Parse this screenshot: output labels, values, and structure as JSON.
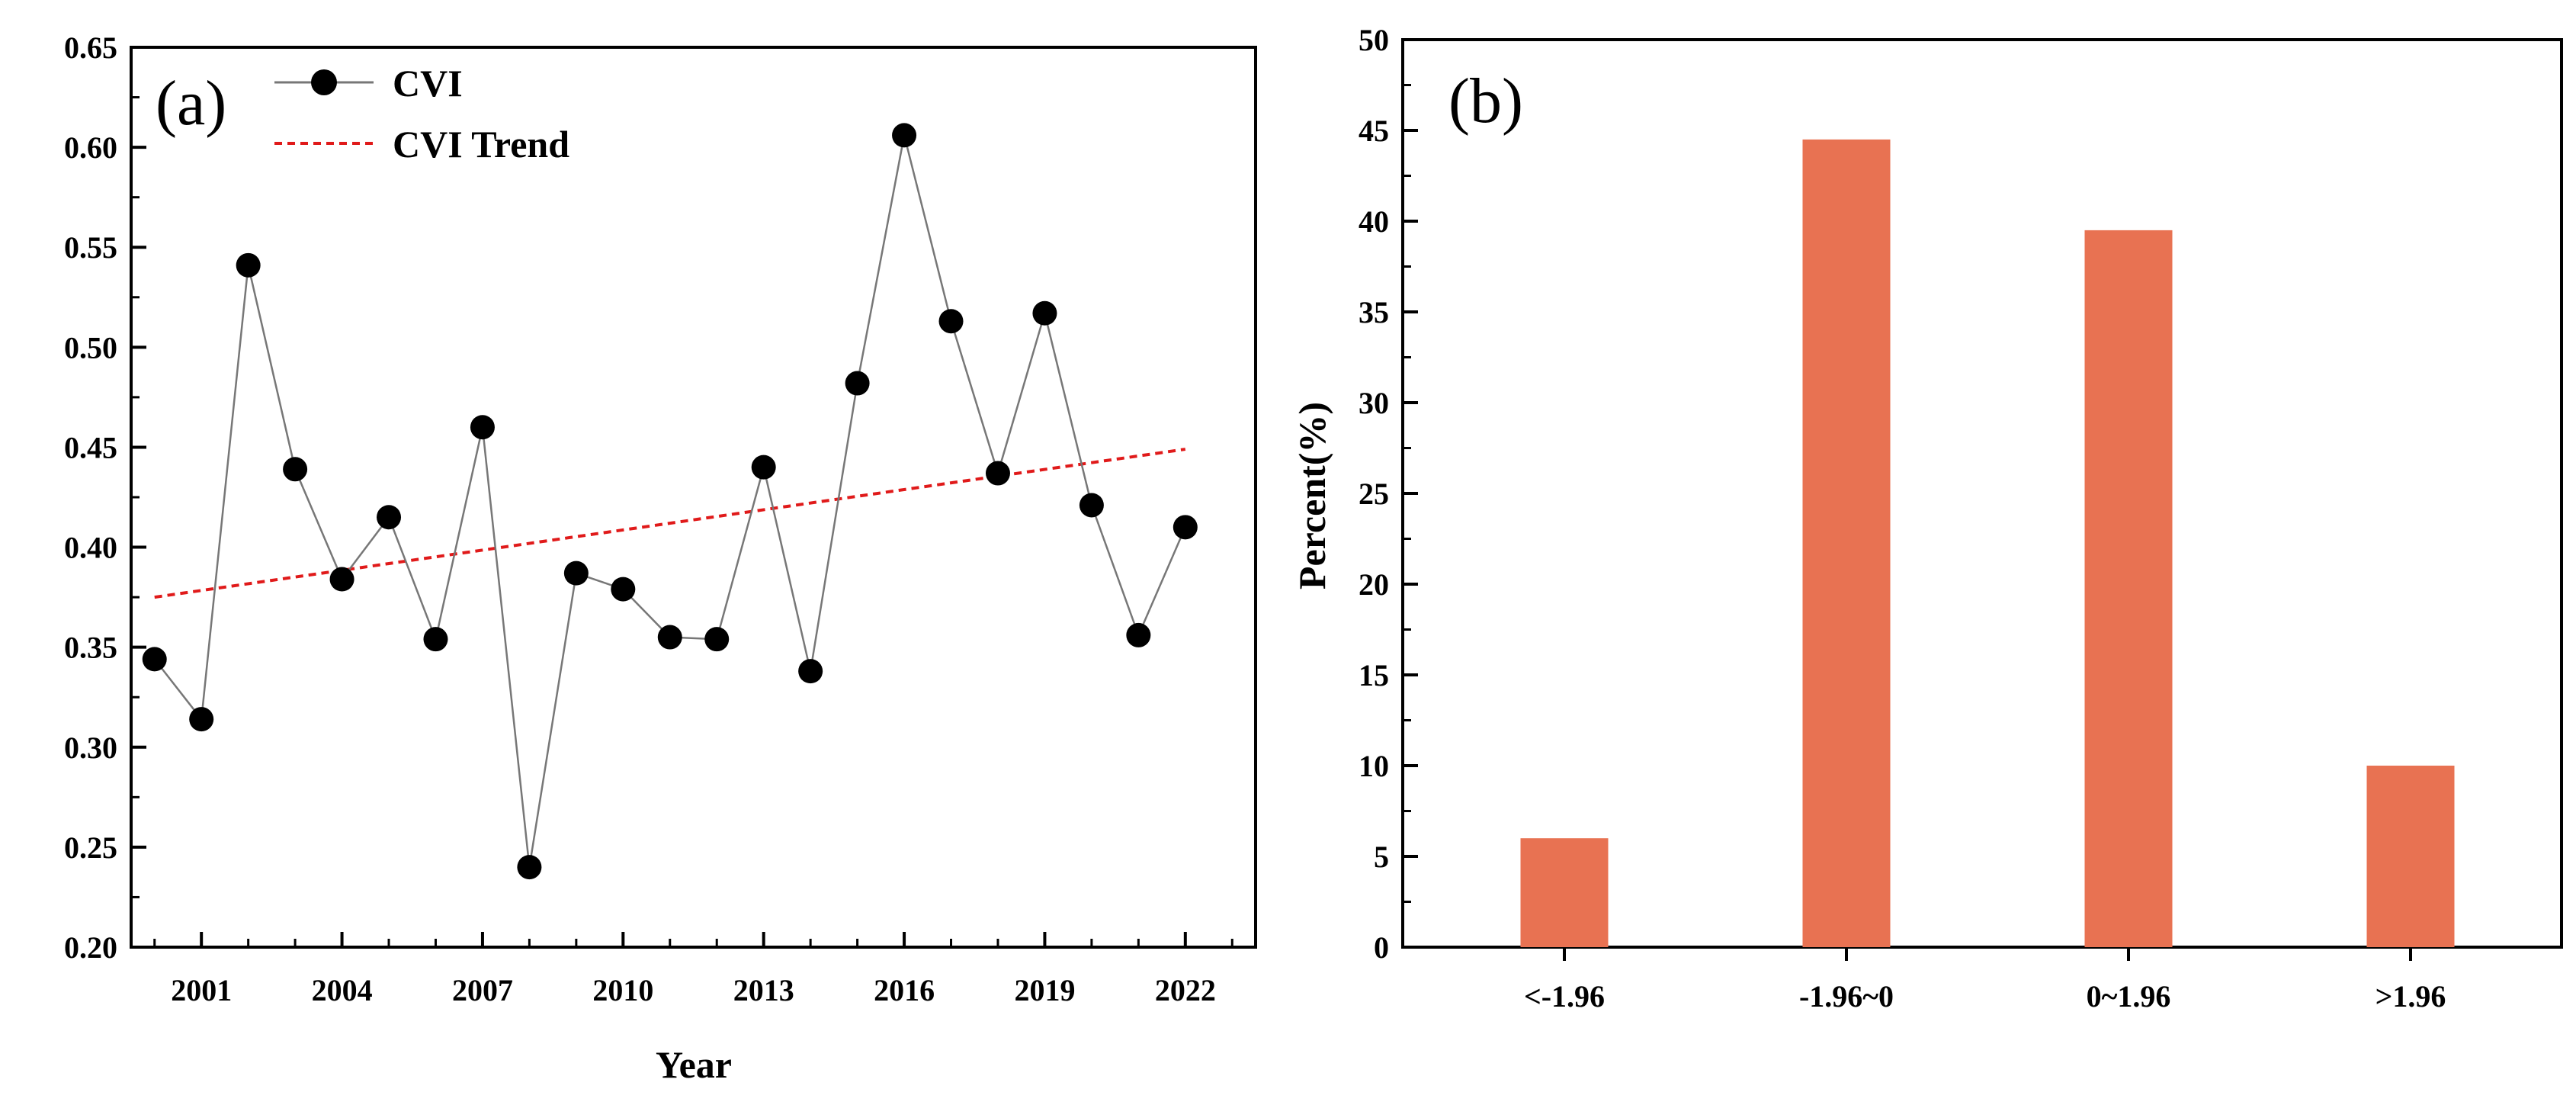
{
  "chart_data": [
    {
      "panel_label": "(a)",
      "type": "line",
      "xlabel": "Year",
      "ylabel": "",
      "xlim": [
        1999.5,
        2023.5
      ],
      "ylim": [
        0.2,
        0.65
      ],
      "x_ticks": [
        "2001",
        "2004",
        "2007",
        "2010",
        "2013",
        "2016",
        "2019",
        "2022"
      ],
      "y_ticks": [
        "0.20",
        "0.25",
        "0.30",
        "0.35",
        "0.40",
        "0.45",
        "0.50",
        "0.55",
        "0.60",
        "0.65"
      ],
      "legend_position": "top-left",
      "series": [
        {
          "name": "CVI",
          "style": "line-with-markers",
          "color": "#000000",
          "line_color": "#777777",
          "x": [
            2000,
            2001,
            2002,
            2003,
            2004,
            2005,
            2006,
            2007,
            2008,
            2009,
            2010,
            2011,
            2012,
            2013,
            2014,
            2015,
            2016,
            2017,
            2018,
            2019,
            2020,
            2021,
            2022
          ],
          "values": [
            0.344,
            0.314,
            0.541,
            0.439,
            0.384,
            0.415,
            0.354,
            0.46,
            0.24,
            0.387,
            0.379,
            0.355,
            0.354,
            0.44,
            0.338,
            0.482,
            0.606,
            0.513,
            0.437,
            0.517,
            0.421,
            0.356,
            0.41
          ]
        },
        {
          "name": "CVI Trend",
          "style": "dashed",
          "color": "#e01a1a",
          "x": [
            2000,
            2022
          ],
          "values": [
            0.375,
            0.449
          ]
        }
      ]
    },
    {
      "panel_label": "(b)",
      "type": "bar",
      "xlabel": "",
      "ylabel": "Percent(%)",
      "categories": [
        "<-1.96",
        "-1.96~0",
        "0~1.96",
        ">1.96"
      ],
      "values": [
        6,
        44.5,
        39.5,
        10
      ],
      "ylim": [
        0,
        50
      ],
      "y_ticks": [
        "0",
        "5",
        "10",
        "15",
        "20",
        "25",
        "30",
        "35",
        "40",
        "45",
        "50"
      ],
      "bar_color": "#e87252"
    }
  ]
}
